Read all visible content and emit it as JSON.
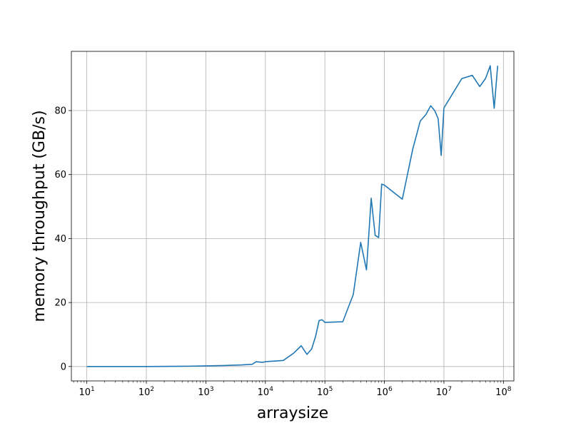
{
  "chart_data": {
    "type": "line",
    "title": "",
    "xlabel": "arraysize",
    "ylabel": "memory throughput (GB/s)",
    "x_scale": "log",
    "xlim": [
      5.5,
      150000000
    ],
    "ylim": [
      -4.5,
      98.5
    ],
    "grid": true,
    "legend": "none",
    "line_color": "#1f77b4",
    "x_ticks": [
      {
        "value": 10,
        "base": "10",
        "exp": "1"
      },
      {
        "value": 100,
        "base": "10",
        "exp": "2"
      },
      {
        "value": 1000,
        "base": "10",
        "exp": "3"
      },
      {
        "value": 10000,
        "base": "10",
        "exp": "4"
      },
      {
        "value": 100000,
        "base": "10",
        "exp": "5"
      },
      {
        "value": 1000000,
        "base": "10",
        "exp": "6"
      },
      {
        "value": 10000000,
        "base": "10",
        "exp": "7"
      },
      {
        "value": 100000000,
        "base": "10",
        "exp": "8"
      }
    ],
    "y_ticks": [
      {
        "value": 0,
        "label": "0"
      },
      {
        "value": 20,
        "label": "20"
      },
      {
        "value": 40,
        "label": "40"
      },
      {
        "value": 60,
        "label": "60"
      },
      {
        "value": 80,
        "label": "80"
      }
    ],
    "series": [
      {
        "x": [
          10,
          100,
          500,
          1000,
          2000,
          4000,
          6000,
          7000,
          8000,
          9000,
          10000,
          20000,
          30000,
          40000,
          50000,
          60000,
          70000,
          80000,
          90000,
          100000,
          200000,
          300000,
          400000,
          500000,
          600000,
          700000,
          800000,
          900000,
          1000000,
          2000000,
          3000000,
          4000000,
          5000000,
          6000000,
          7000000,
          8000000,
          9000000,
          10000000,
          20000000,
          30000000,
          40000000,
          50000000,
          60000000,
          70000000,
          80000000
        ],
        "y": [
          0.0,
          0.0,
          0.1,
          0.2,
          0.3,
          0.5,
          0.7,
          1.5,
          1.4,
          1.3,
          1.5,
          1.9,
          4.2,
          6.5,
          3.8,
          5.5,
          9.5,
          14.4,
          14.6,
          13.8,
          14.0,
          22.5,
          38.8,
          30.2,
          52.6,
          41.0,
          40.3,
          57.0,
          56.7,
          52.3,
          68.0,
          76.7,
          78.8,
          81.5,
          80.0,
          77.5,
          66.0,
          80.8,
          90.0,
          91.0,
          87.5,
          90.0,
          94.0,
          80.7,
          94.0
        ]
      }
    ]
  }
}
